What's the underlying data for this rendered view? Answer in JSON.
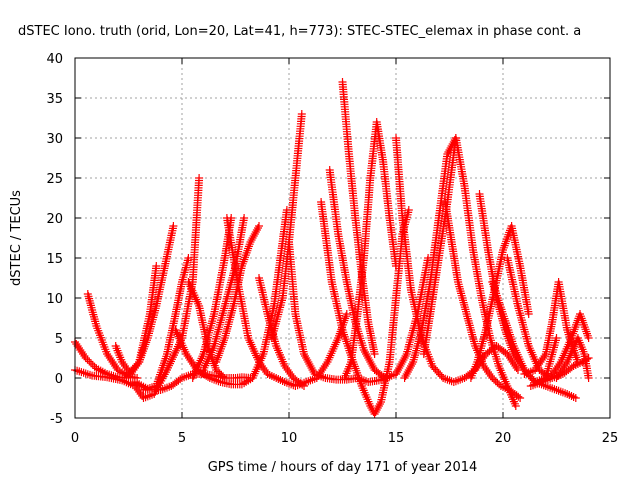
{
  "chart_data": {
    "type": "scatter",
    "title": "dSTEC Iono. truth (orid, Lon=20, Lat=41, h=773): STEC-STEC_elemax in phase cont. a",
    "xlabel": "GPS time / hours of day 171 of year 2014",
    "ylabel": "dSTEC  / TECUs",
    "xlim": [
      0,
      25
    ],
    "ylim": [
      -5,
      40
    ],
    "xticks": [
      0,
      5,
      10,
      15,
      20,
      25
    ],
    "yticks": [
      -5,
      0,
      5,
      10,
      15,
      20,
      25,
      30,
      35,
      40
    ],
    "grid": true,
    "marker": "+",
    "color": "#ff0000",
    "series": [
      {
        "x": [
          0.0,
          0.5,
          1.0,
          1.5,
          2.0,
          2.4
        ],
        "y": [
          4.5,
          2.5,
          1.2,
          0.5,
          0.1,
          0.0
        ]
      },
      {
        "x": [
          0.6,
          1.0,
          1.5,
          2.0,
          2.5,
          2.9
        ],
        "y": [
          10.5,
          6.5,
          3.0,
          1.0,
          0.2,
          0.0
        ]
      },
      {
        "x": [
          0.0,
          0.8,
          1.5,
          2.2,
          2.8,
          3.2,
          3.7,
          4.3,
          5.0,
          5.5,
          5.8
        ],
        "y": [
          1.0,
          0.3,
          0.1,
          -0.3,
          -1.0,
          -2.5,
          -2.0,
          1.0,
          5.0,
          12.0,
          25.0
        ]
      },
      {
        "x": [
          1.9,
          2.2,
          2.6,
          3.0,
          3.5,
          3.8
        ],
        "y": [
          4.0,
          2.0,
          0.5,
          2.0,
          8.0,
          14.0
        ]
      },
      {
        "x": [
          2.5,
          3.0,
          3.4,
          3.8,
          4.2,
          4.6
        ],
        "y": [
          0.5,
          2.0,
          5.0,
          9.0,
          14.0,
          19.0
        ]
      },
      {
        "x": [
          2.8,
          3.5,
          4.0,
          4.5,
          5.0,
          5.5,
          6.0,
          6.5,
          7.0,
          7.5,
          7.8,
          8.2
        ],
        "y": [
          -0.5,
          -1.5,
          -1.5,
          -1.0,
          0.0,
          0.5,
          0.5,
          0.3,
          0.0,
          0.0,
          0.1,
          0.0
        ]
      },
      {
        "x": [
          3.2,
          3.8,
          4.3,
          4.7,
          5.0,
          5.3
        ],
        "y": [
          -1.5,
          -1.0,
          3.0,
          8.0,
          12.0,
          15.0
        ]
      },
      {
        "x": [
          4.7,
          5.2,
          5.7,
          6.3,
          6.8,
          7.3,
          7.8,
          8.3,
          8.8,
          9.3,
          9.6,
          9.9
        ],
        "y": [
          6.0,
          3.0,
          1.0,
          0.0,
          -0.5,
          -0.8,
          -0.8,
          0.0,
          3.0,
          9.0,
          15.0,
          21.0
        ]
      },
      {
        "x": [
          5.3,
          5.8,
          6.2,
          6.6,
          7.0
        ],
        "y": [
          12.0,
          9.0,
          4.0,
          1.0,
          0.0
        ]
      },
      {
        "x": [
          5.5,
          6.0,
          6.5,
          7.0,
          7.3
        ],
        "y": [
          0.0,
          3.0,
          8.0,
          15.0,
          20.0
        ]
      },
      {
        "x": [
          6.0,
          6.5,
          7.0,
          7.5,
          7.9
        ],
        "y": [
          1.0,
          4.0,
          9.0,
          14.0,
          20.0
        ]
      },
      {
        "x": [
          6.6,
          7.0,
          7.4,
          7.8,
          8.2,
          8.6
        ],
        "y": [
          2.0,
          5.0,
          9.0,
          14.0,
          17.0,
          19.0
        ]
      },
      {
        "x": [
          7.1,
          7.6,
          8.1,
          8.6,
          9.0,
          9.4,
          9.8,
          10.3,
          10.8,
          11.3,
          11.8,
          12.3,
          12.7
        ],
        "y": [
          20.0,
          12.0,
          5.0,
          2.0,
          0.5,
          0.0,
          -0.5,
          -1.0,
          -0.5,
          0.0,
          2.0,
          5.0,
          8.0
        ]
      },
      {
        "x": [
          8.6,
          9.0,
          9.4,
          9.8,
          10.2,
          10.7
        ],
        "y": [
          12.5,
          8.0,
          4.0,
          1.5,
          0.0,
          -1.0
        ]
      },
      {
        "x": [
          9.2,
          9.7,
          10.0,
          10.3,
          10.6
        ],
        "y": [
          5.0,
          10.0,
          17.0,
          25.0,
          33.0
        ]
      },
      {
        "x": [
          10.0,
          10.3,
          10.7,
          11.2,
          11.7,
          12.2,
          12.7,
          13.2,
          13.7,
          14.2,
          14.6
        ],
        "y": [
          17.0,
          8.0,
          3.0,
          0.5,
          0.0,
          -0.2,
          -0.2,
          0.0,
          -0.5,
          -0.3,
          0.0
        ]
      },
      {
        "x": [
          11.5,
          12.0,
          12.5,
          13.0,
          13.4,
          13.8,
          14.0,
          14.3,
          14.7,
          15.0,
          15.3,
          15.6
        ],
        "y": [
          22.0,
          12.0,
          6.0,
          2.0,
          -1.0,
          -3.5,
          -4.5,
          -3.0,
          2.0,
          10.0,
          18.0,
          21.0
        ]
      },
      {
        "x": [
          11.9,
          12.3,
          12.7,
          13.1,
          13.5,
          14.0,
          14.5,
          15.0,
          15.5,
          16.0,
          16.5
        ],
        "y": [
          26.0,
          18.0,
          12.0,
          7.0,
          3.5,
          1.0,
          0.0,
          0.5,
          3.0,
          8.0,
          15.0
        ]
      },
      {
        "x": [
          12.5,
          12.8,
          13.1,
          13.4,
          13.7,
          14.0
        ],
        "y": [
          37.0,
          28.0,
          20.0,
          13.0,
          7.0,
          3.0
        ]
      },
      {
        "x": [
          12.6,
          12.9,
          13.2,
          13.5,
          13.8,
          14.1,
          14.4,
          14.7,
          15.0
        ],
        "y": [
          0.0,
          2.0,
          8.0,
          15.0,
          25.0,
          32.0,
          27.0,
          20.0,
          14.0
        ]
      },
      {
        "x": [
          15.0,
          15.3,
          15.7,
          16.2,
          16.7,
          17.2,
          17.7,
          18.2,
          18.7,
          19.2,
          19.7,
          20.2,
          20.7
        ],
        "y": [
          30.0,
          20.0,
          11.0,
          5.0,
          1.5,
          0.0,
          -0.5,
          0.0,
          1.0,
          3.0,
          4.0,
          3.0,
          1.0
        ]
      },
      {
        "x": [
          15.4,
          15.8,
          16.2,
          16.6,
          17.0,
          17.4,
          17.8
        ],
        "y": [
          0.0,
          2.0,
          6.0,
          12.0,
          20.0,
          28.0,
          30.0
        ]
      },
      {
        "x": [
          16.3,
          16.6,
          17.0,
          17.4,
          17.8,
          18.2,
          18.6,
          19.0,
          19.4,
          19.8,
          20.2,
          20.6
        ],
        "y": [
          3.0,
          8.0,
          15.0,
          22.0,
          30.0,
          24.0,
          16.0,
          10.0,
          5.0,
          1.5,
          -1.0,
          -3.5
        ]
      },
      {
        "x": [
          17.3,
          17.6,
          17.9,
          18.3,
          18.7,
          19.1,
          19.5,
          19.9,
          20.3,
          20.8
        ],
        "y": [
          22.0,
          17.0,
          12.0,
          8.0,
          4.0,
          1.5,
          0.0,
          -1.0,
          -1.5,
          -2.5
        ]
      },
      {
        "x": [
          18.5,
          18.8,
          19.2,
          19.6,
          20.0,
          20.4,
          20.8,
          21.2
        ],
        "y": [
          0.0,
          2.0,
          6.0,
          11.0,
          16.0,
          19.0,
          14.0,
          8.0
        ]
      },
      {
        "x": [
          18.9,
          19.3,
          19.7,
          20.1,
          20.5,
          21.0,
          21.5,
          22.0,
          22.5,
          23.0,
          23.4
        ],
        "y": [
          23.0,
          16.0,
          10.0,
          6.0,
          3.0,
          1.0,
          -0.5,
          -1.0,
          -1.5,
          -2.0,
          -2.5
        ]
      },
      {
        "x": [
          19.5,
          20.0,
          20.5,
          21.0,
          21.5,
          22.0,
          22.5
        ],
        "y": [
          12.0,
          8.0,
          4.0,
          1.0,
          -0.5,
          0.0,
          5.0
        ]
      },
      {
        "x": [
          20.2,
          20.7,
          21.2,
          21.7,
          22.2,
          22.7,
          23.2,
          23.6,
          24.0
        ],
        "y": [
          15.0,
          9.0,
          4.0,
          1.0,
          0.0,
          2.0,
          5.0,
          8.0,
          5.0
        ]
      },
      {
        "x": [
          21.0,
          21.5,
          22.0,
          22.3,
          22.6,
          23.0,
          23.5
        ],
        "y": [
          0.5,
          1.0,
          3.0,
          7.0,
          12.0,
          6.0,
          2.0
        ]
      },
      {
        "x": [
          21.3,
          21.8,
          22.3,
          22.8,
          23.3,
          23.7,
          24.0
        ],
        "y": [
          -1.0,
          -0.5,
          0.0,
          0.5,
          1.5,
          2.0,
          2.5
        ]
      },
      {
        "x": [
          22.5,
          23.0,
          23.5,
          23.8,
          24.0
        ],
        "y": [
          0.0,
          2.0,
          5.0,
          3.0,
          0.0
        ]
      }
    ]
  }
}
